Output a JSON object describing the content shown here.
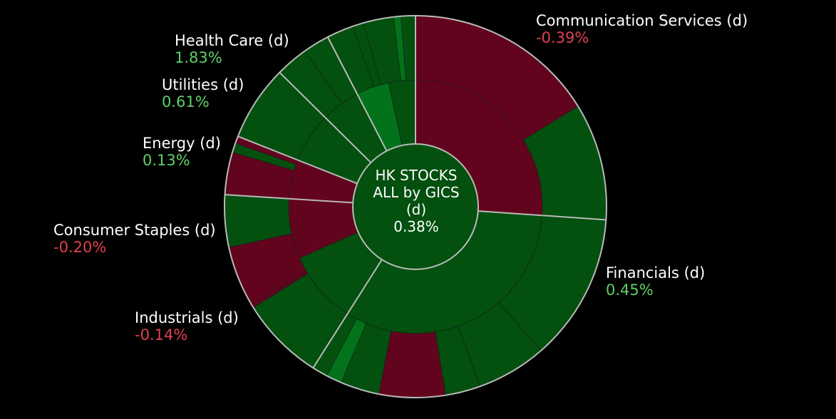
{
  "chart_data": {
    "type": "sunburst",
    "title": "HK STOCKS ALL by GICS",
    "center": {
      "line1": "HK STOCKS",
      "line2": "ALL by GICS",
      "line3": "(d)",
      "value": "0.38%"
    },
    "sectors": [
      {
        "name": "Communication Services (d)",
        "value_label": "-0.39%",
        "change": -0.39,
        "weight": 26.1
      },
      {
        "name": "Financials (d)",
        "value_label": "0.45%",
        "change": 0.45,
        "weight": 32.9
      },
      {
        "name": "Industrials (d)",
        "value_label": "-0.14%",
        "change": -0.14,
        "weight": 17.0
      },
      {
        "name": "Consumer Staples (d)",
        "value_label": "-0.20%",
        "change": -0.2,
        "weight": 5.0
      },
      {
        "name": "Energy (d)",
        "value_label": "0.13%",
        "change": 0.13,
        "weight": 6.4
      },
      {
        "name": "Utilities (d)",
        "value_label": "0.61%",
        "change": 0.61,
        "weight": 5.0
      },
      {
        "name": "Health Care (d)",
        "value_label": "1.83%",
        "change": 1.83,
        "weight": 7.6
      }
    ],
    "colors": {
      "positive": "#03500f",
      "positive_light": "#02731a",
      "negative": "#62041d",
      "separator": "#b9b9b9",
      "center": "#03500f",
      "label_positive": "#5fd068",
      "label_negative": "#e0414f"
    }
  }
}
